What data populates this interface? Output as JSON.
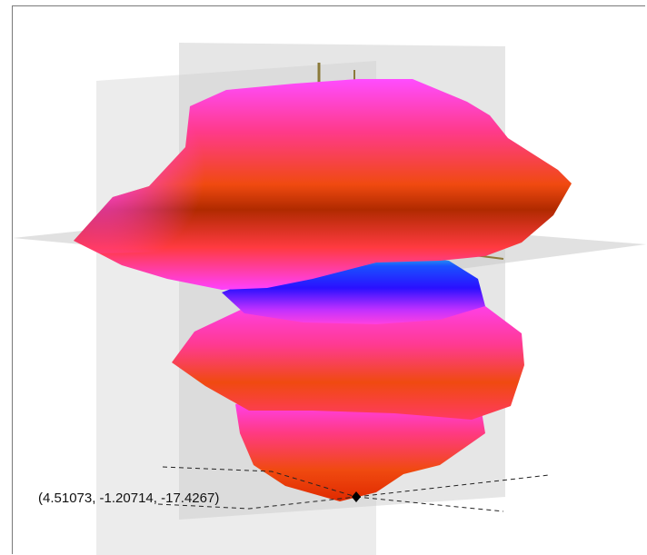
{
  "viewer": {
    "point_readout": "(4.51073, -1.20714, -17.4267)"
  },
  "colors": {
    "plane": "#c8c8c8",
    "axis": "#8b7a3a",
    "surface_red": "#e84a1a",
    "surface_magenta": "#ff4cff",
    "surface_blue": "#1a1aff",
    "surface_cyan": "#1ad6d6",
    "marker": "#000000"
  },
  "icons": {
    "point_marker": "diamond-marker-icon"
  }
}
